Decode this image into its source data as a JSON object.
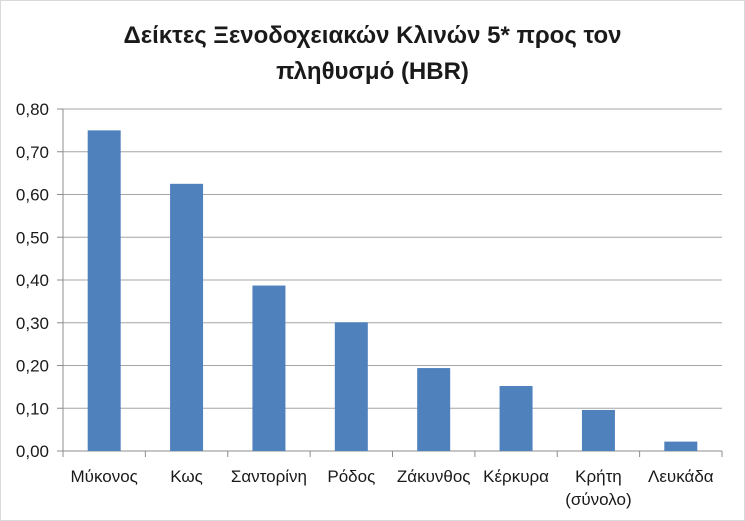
{
  "chart_data": {
    "type": "bar",
    "title_lines": [
      "Δείκτες Ξενοδοχειακών Κλινών 5* προς τον",
      "πληθυσμό (HBR)"
    ],
    "categories": [
      [
        "Μύκονος"
      ],
      [
        "Κως"
      ],
      [
        "Σαντορίνη"
      ],
      [
        "Ρόδος"
      ],
      [
        "Ζάκυνθος"
      ],
      [
        "Κέρκυρα"
      ],
      [
        "Κρήτη",
        "(σύνολο)"
      ],
      [
        "Λευκάδα"
      ]
    ],
    "values": [
      0.75,
      0.625,
      0.387,
      0.301,
      0.194,
      0.152,
      0.096,
      0.022
    ],
    "ylim": [
      0,
      0.8
    ],
    "yticks": [
      "0,00",
      "0,10",
      "0,20",
      "0,30",
      "0,40",
      "0,50",
      "0,60",
      "0,70",
      "0,80"
    ],
    "grid": true,
    "bar_color": "#4f81bd",
    "grid_color": "#a6a6a6",
    "axis_color": "#8c8c8c"
  }
}
